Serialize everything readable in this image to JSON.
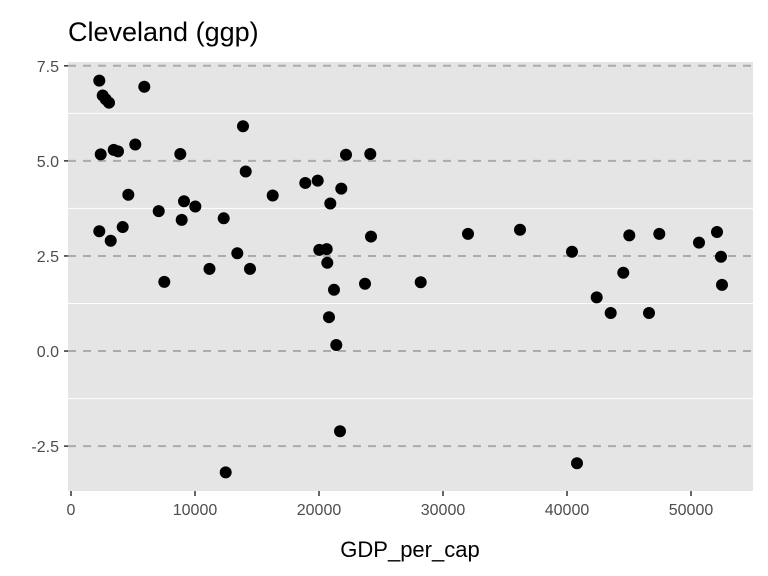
{
  "chart_data": {
    "type": "scatter",
    "title": "Cleveland (ggp)",
    "xlabel": "GDP_per_cap",
    "ylabel": "",
    "xlim": [
      -242,
      55000
    ],
    "ylim": [
      -3.68,
      7.6
    ],
    "x_ticks": [
      0,
      10000,
      20000,
      30000,
      40000,
      50000
    ],
    "x_tick_labels": [
      "0",
      "10000",
      "20000",
      "30000",
      "40000",
      "50000"
    ],
    "y_ticks": [
      -2.5,
      0,
      2.5,
      5,
      7.5
    ],
    "y_tick_labels": [
      "-2.5",
      "0.0",
      "2.5",
      "5.0",
      "7.5"
    ],
    "y_minor_grid": [
      -1.25,
      1.25,
      3.75,
      6.25
    ],
    "grid": {
      "major_y": "dashed",
      "minor_y": "solid-white",
      "x": "none"
    },
    "legend": "none",
    "colors": {
      "panel": "#e5e5e5",
      "point": "#000000",
      "major_grid": "#ababab",
      "minor_grid": "#ffffff"
    },
    "points": [
      [
        2282,
        7.11
      ],
      [
        2557,
        6.72
      ],
      [
        2798,
        6.62
      ],
      [
        3065,
        6.53
      ],
      [
        5911,
        6.95
      ],
      [
        13871,
        5.91
      ],
      [
        2395,
        5.17
      ],
      [
        3444,
        5.29
      ],
      [
        3790,
        5.25
      ],
      [
        5185,
        5.43
      ],
      [
        8815,
        5.18
      ],
      [
        14089,
        4.72
      ],
      [
        4621,
        4.11
      ],
      [
        9113,
        3.94
      ],
      [
        10024,
        3.8
      ],
      [
        7073,
        3.68
      ],
      [
        8927,
        3.45
      ],
      [
        12315,
        3.49
      ],
      [
        2282,
        3.15
      ],
      [
        4169,
        3.26
      ],
      [
        3202,
        2.9
      ],
      [
        13411,
        2.57
      ],
      [
        11169,
        2.16
      ],
      [
        14435,
        2.16
      ],
      [
        7524,
        1.82
      ],
      [
        22177,
        5.16
      ],
      [
        24137,
        5.18
      ],
      [
        18895,
        4.42
      ],
      [
        19895,
        4.48
      ],
      [
        21798,
        4.27
      ],
      [
        16266,
        4.09
      ],
      [
        20911,
        3.88
      ],
      [
        24194,
        3.01
      ],
      [
        20024,
        2.66
      ],
      [
        20621,
        2.68
      ],
      [
        20669,
        2.32
      ],
      [
        21210,
        1.61
      ],
      [
        23710,
        1.77
      ],
      [
        20806,
        0.89
      ],
      [
        21395,
        0.16
      ],
      [
        21694,
        -2.11
      ],
      [
        12476,
        -3.19
      ],
      [
        28202,
        1.81
      ],
      [
        32016,
        3.08
      ],
      [
        36210,
        3.19
      ],
      [
        40403,
        2.61
      ],
      [
        40806,
        -2.95
      ],
      [
        42395,
        1.41
      ],
      [
        43524,
        1.0
      ],
      [
        44540,
        2.06
      ],
      [
        45024,
        3.04
      ],
      [
        46613,
        1.0
      ],
      [
        47444,
        3.08
      ],
      [
        50645,
        2.85
      ],
      [
        52097,
        3.13
      ],
      [
        52419,
        2.48
      ],
      [
        52500,
        1.74
      ]
    ]
  }
}
